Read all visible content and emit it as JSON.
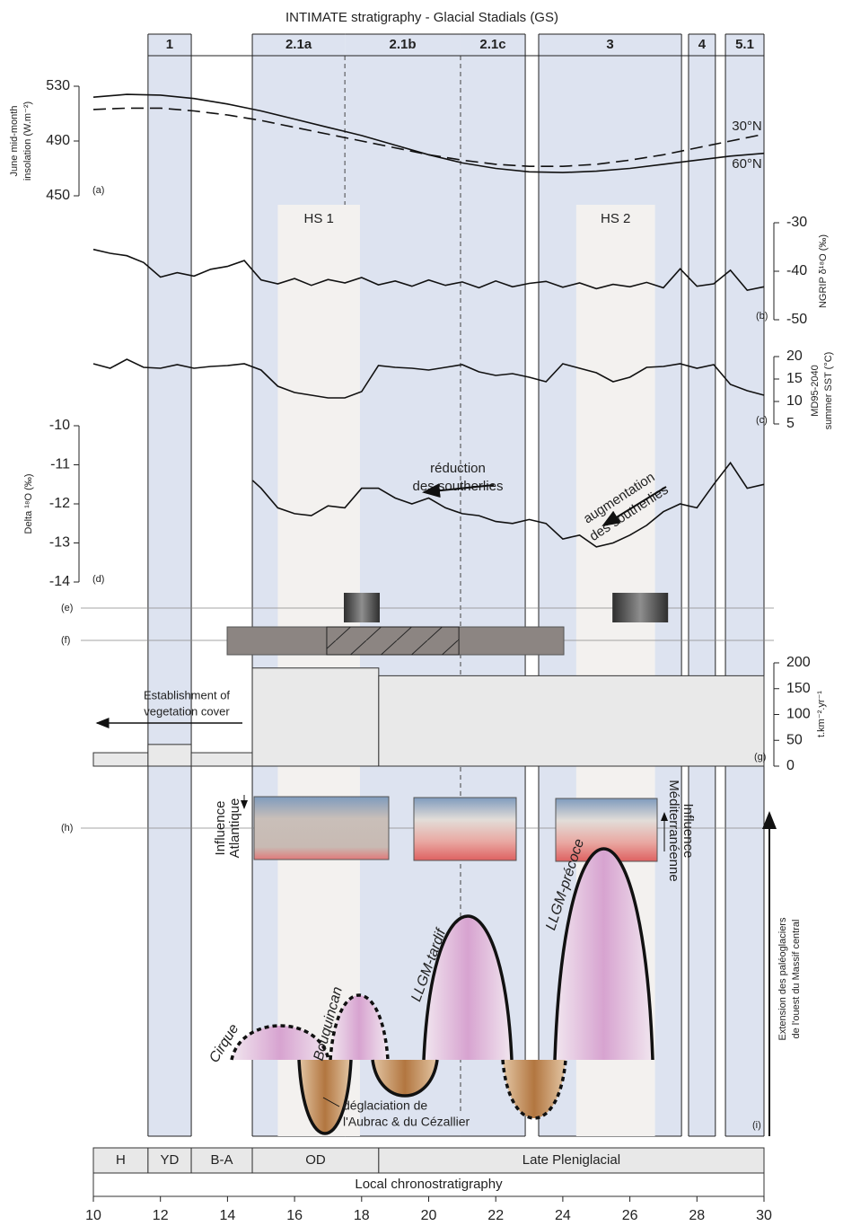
{
  "title": "INTIMATE stratigraphy - Glacial Stadials (GS)",
  "xlim": [
    10,
    30
  ],
  "xticks": [
    10,
    12,
    14,
    16,
    18,
    20,
    22,
    24,
    26,
    28,
    30
  ],
  "stadials": [
    {
      "label": "1",
      "start": 11.63,
      "end": 12.92
    },
    {
      "label": "2.1a",
      "start": 14.74,
      "end": 17.5
    },
    {
      "label": "2.1b",
      "start": 17.5,
      "end": 20.95
    },
    {
      "label": "2.1c",
      "start": 20.95,
      "end": 22.88
    },
    {
      "label": "3",
      "start": 23.28,
      "end": 27.54
    },
    {
      "label": "4",
      "start": 27.75,
      "end": 28.55
    },
    {
      "label": "5.1",
      "start": 28.85,
      "end": 30
    }
  ],
  "heinrich_stadials": [
    {
      "label": "HS 1",
      "start": 15.5,
      "end": 17.95
    },
    {
      "label": "HS 2",
      "start": 24.4,
      "end": 26.75
    }
  ],
  "chart_data": [
    {
      "type": "line",
      "panel": "(a)",
      "ylabel": [
        "June mid-month",
        "insolation (W.m⁻²)"
      ],
      "axis_side": "left",
      "ylim": [
        450,
        530
      ],
      "yticks": [
        450,
        490,
        530
      ],
      "x": [
        10,
        11,
        12,
        13,
        14,
        15,
        16,
        17,
        18,
        19,
        20,
        21,
        22,
        23,
        24,
        25,
        26,
        27,
        28,
        29,
        30
      ],
      "series": [
        {
          "name": "30°N",
          "color": "#111111",
          "dash": true,
          "values": [
            513,
            514,
            514,
            512,
            509,
            505,
            500,
            495,
            490,
            485,
            480,
            476,
            473,
            471.5,
            471.5,
            473,
            476,
            480,
            485,
            490,
            495
          ]
        },
        {
          "name": "60°N",
          "color": "#111111",
          "dash": false,
          "values": [
            522,
            524,
            523.5,
            521,
            517,
            512,
            506,
            500,
            494,
            487,
            480,
            474,
            470,
            467.5,
            467,
            468,
            470,
            473,
            476,
            479,
            481
          ]
        }
      ]
    },
    {
      "type": "line",
      "panel": "(b)",
      "ylabel": [
        "NGRIP δ¹⁸O (‰)"
      ],
      "axis_side": "right",
      "ylim": [
        -50,
        -30
      ],
      "yticks": [
        -50,
        -40,
        -30
      ],
      "x": [
        10,
        10.5,
        11,
        11.5,
        12,
        12.5,
        13,
        13.5,
        14,
        14.5,
        15,
        15.5,
        16,
        16.5,
        17,
        17.5,
        18,
        18.5,
        19,
        19.5,
        20,
        20.5,
        21,
        21.5,
        22,
        22.5,
        23,
        23.5,
        24,
        24.5,
        25,
        25.5,
        26,
        26.5,
        27,
        27.5,
        28,
        28.5,
        29,
        29.5,
        30
      ],
      "series": [
        {
          "color": "#111111",
          "values": [
            -35.5,
            -36.3,
            -36.8,
            -38.2,
            -41.2,
            -40.3,
            -41.0,
            -39.6,
            -39.0,
            -37.8,
            -41.8,
            -42.6,
            -41.5,
            -42.9,
            -41.7,
            -42.4,
            -41.3,
            -42.8,
            -42.0,
            -43.1,
            -41.8,
            -42.9,
            -42.2,
            -43.4,
            -42.0,
            -43.2,
            -42.5,
            -42.1,
            -43.3,
            -42.4,
            -43.6,
            -42.7,
            -43.2,
            -42.3,
            -43.4,
            -39.5,
            -43.1,
            -42.6,
            -39.8,
            -43.9,
            -43.2
          ]
        }
      ]
    },
    {
      "type": "line",
      "panel": "(c)",
      "ylabel": [
        "MD95-2040",
        "summer SST (°C)"
      ],
      "axis_side": "right",
      "ylim": [
        5,
        20
      ],
      "yticks": [
        5,
        10,
        15,
        20
      ],
      "x": [
        10,
        10.5,
        11,
        11.5,
        12,
        12.5,
        13,
        13.5,
        14,
        14.5,
        15,
        15.5,
        16,
        16.5,
        17,
        17.5,
        18,
        18.5,
        19,
        19.5,
        20,
        20.5,
        21,
        21.5,
        22,
        22.5,
        23,
        23.5,
        24,
        24.5,
        25,
        25.5,
        26,
        26.5,
        27,
        27.5,
        28,
        28.5,
        29,
        29.5,
        30
      ],
      "series": [
        {
          "color": "#111111",
          "values": [
            18.4,
            17.4,
            19.4,
            17.6,
            17.4,
            18.2,
            17.4,
            17.8,
            18,
            18.4,
            17,
            13.4,
            12,
            11.4,
            10.8,
            10.8,
            12.2,
            18,
            17.6,
            17.4,
            17,
            17.6,
            18.2,
            16.6,
            15.8,
            16.2,
            15.4,
            14.4,
            18.4,
            17.4,
            16.4,
            14.4,
            15.4,
            17.6,
            17.8,
            18.4,
            17.4,
            18.2,
            13.8,
            12.4,
            11.4
          ]
        }
      ]
    },
    {
      "type": "line",
      "panel": "(d)",
      "ylabel": [
        "Delta ¹⁸O (‰)"
      ],
      "axis_side": "left",
      "ylim": [
        -14,
        -10
      ],
      "yticks": [
        -14,
        -13,
        -12,
        -11,
        -10
      ],
      "annotations": [
        [
          "réduction",
          "des southerlies"
        ],
        [
          "augmentation",
          "des southerlies"
        ]
      ],
      "x": [
        14.75,
        15,
        15.5,
        16,
        16.5,
        17,
        17.5,
        18,
        18.5,
        19,
        19.5,
        20,
        20.5,
        21,
        21.5,
        22,
        22.5,
        23,
        23.5,
        24,
        24.5,
        25,
        25.5,
        26,
        26.5,
        27,
        27.5,
        28,
        28.5,
        29,
        29.5,
        30
      ],
      "series": [
        {
          "color": "#111111",
          "values": [
            -11.4,
            -11.6,
            -12.1,
            -12.25,
            -12.3,
            -12.05,
            -12.1,
            -11.6,
            -11.6,
            -11.85,
            -12.0,
            -11.85,
            -12.1,
            -12.25,
            -12.3,
            -12.45,
            -12.5,
            -12.4,
            -12.5,
            -12.9,
            -12.8,
            -13.1,
            -13.0,
            -12.8,
            -12.55,
            -12.2,
            -12.0,
            -12.1,
            -11.5,
            -10.95,
            -11.6,
            -11.5
          ]
        }
      ]
    },
    {
      "type": "interval",
      "panel": "(e)",
      "intervals": [
        {
          "start": 17.47,
          "end": 18.54
        },
        {
          "start": 25.48,
          "end": 27.14
        }
      ]
    },
    {
      "type": "interval",
      "panel": "(f)",
      "intervals": [
        {
          "start": 13.99,
          "end": 24.03
        }
      ],
      "hatched": {
        "start": 16.96,
        "end": 20.9
      }
    },
    {
      "type": "bar",
      "panel": "(g)",
      "ylabel": [
        "t.km⁻².yr⁻¹"
      ],
      "axis_side": "right",
      "ylim": [
        0,
        200
      ],
      "yticks": [
        0,
        50,
        100,
        150,
        200
      ],
      "annotation": [
        "Establishment of",
        "vegetation cover"
      ],
      "starts": [
        10,
        11.63,
        12.92,
        14.74,
        18.51
      ],
      "ends": [
        11.63,
        12.92,
        14.74,
        18.51,
        30
      ],
      "values": [
        26,
        42,
        26,
        190,
        175
      ],
      "color": "#e9e9e9"
    }
  ],
  "panel_h": {
    "label": "(h)",
    "atlantic": [
      "Influence",
      "Atlantique"
    ],
    "mediterranean": [
      "Influence",
      "Méditerranéenne"
    ]
  },
  "panel_i": {
    "label": "(i)",
    "glaciers": [
      "Cirque",
      "Bouquincan",
      "LLGM-tardif",
      "LLGM-précoce"
    ],
    "deglaciation": [
      "déglaciation de",
      "l'Aubrac & du Cézallier"
    ],
    "axis_title": [
      "Extension des paléoglaciers",
      "de l'ouest du Massif central"
    ]
  },
  "chronostratigraphy": {
    "title": "Local chronostratigraphy",
    "periods": [
      {
        "label": "H",
        "start": 10,
        "end": 11.63
      },
      {
        "label": "YD",
        "start": 11.63,
        "end": 12.92
      },
      {
        "label": "B-A",
        "start": 12.92,
        "end": 14.74
      },
      {
        "label": "OD",
        "start": 14.74,
        "end": 18.51
      },
      {
        "label": "Late Pleniglacial",
        "start": 18.51,
        "end": 30
      }
    ]
  }
}
